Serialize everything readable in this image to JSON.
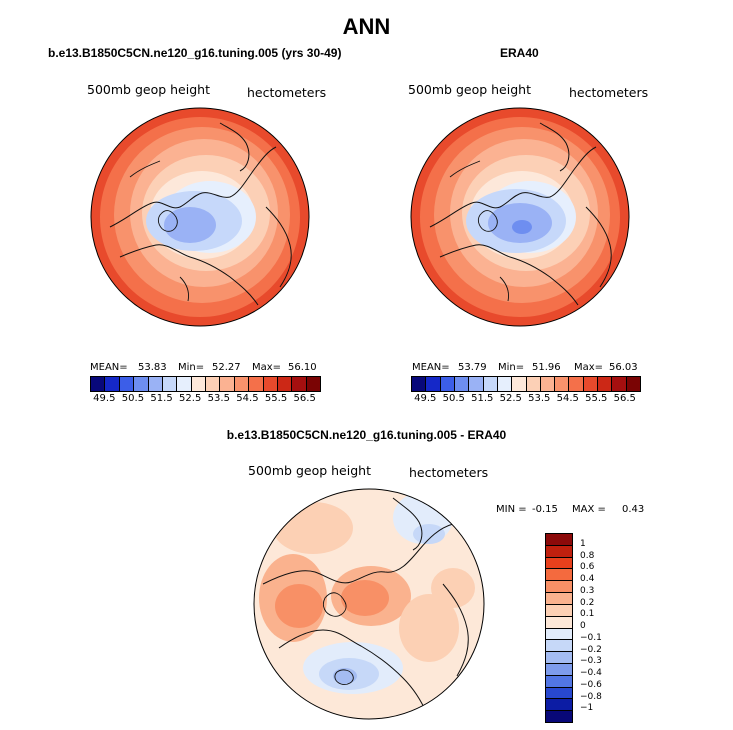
{
  "figure": {
    "season": "ANN"
  },
  "left_panel": {
    "title": "b.e13.B1850C5CN.ne120_g16.tuning.005 (yrs 30-49)",
    "variable": "500mb geop height",
    "units": "hectometers",
    "mean_label": "MEAN=",
    "mean_value": "53.83",
    "min_label": "Min=",
    "min_value": "52.27",
    "max_label": "Max=",
    "max_value": "56.10"
  },
  "right_panel": {
    "title": "ERA40",
    "variable": "500mb geop height",
    "units": "hectometers",
    "mean_label": "MEAN=",
    "mean_value": "53.79",
    "min_label": "Min=",
    "min_value": "51.96",
    "max_label": "Max=",
    "max_value": "56.03"
  },
  "abs_colorbar": {
    "tick_labels": [
      "49.5",
      "50.5",
      "51.5",
      "52.5",
      "53.5",
      "54.5",
      "55.5",
      "56.5"
    ],
    "colors": [
      "#08087a",
      "#1528c8",
      "#3c5ee8",
      "#6e8ef0",
      "#9ab2f5",
      "#c6d8fa",
      "#e6effd",
      "#fde8da",
      "#fcd0b6",
      "#fbb292",
      "#f8926c",
      "#f4704a",
      "#e84a2c",
      "#cc2816",
      "#a50f0f",
      "#7a0404"
    ]
  },
  "diff_panel": {
    "title": "b.e13.B1850C5CN.ne120_g16.tuning.005 - ERA40",
    "variable": "500mb geop height",
    "units": "hectometers",
    "min_label": "MIN =",
    "min_value": "-0.15",
    "max_label": "MAX =",
    "max_value": "0.43"
  },
  "diff_colorbar": {
    "levels": [
      "1",
      "0.8",
      "0.6",
      "0.4",
      "0.3",
      "0.2",
      "0.1",
      "0",
      "−0.1",
      "−0.2",
      "−0.3",
      "−0.4",
      "−0.6",
      "−0.8",
      "−1"
    ],
    "colors": [
      "#8c0a0a",
      "#c0200e",
      "#e8401c",
      "#f46a3e",
      "#f89066",
      "#fab28e",
      "#fcd0b4",
      "#fde8d8",
      "#e2ecfb",
      "#c6d8f8",
      "#a4bcf2",
      "#7e9cec",
      "#5276e4",
      "#2848d0",
      "#0c1ca4",
      "#080878"
    ]
  }
}
